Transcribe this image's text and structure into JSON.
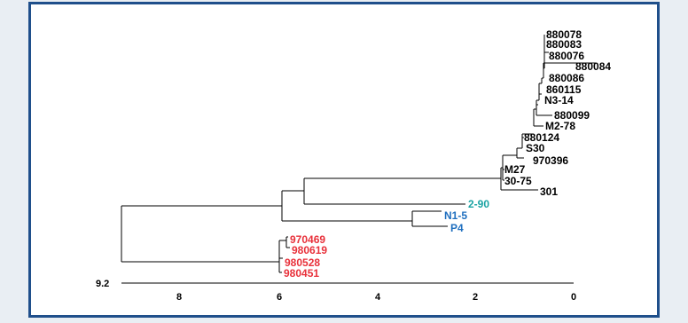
{
  "tree": {
    "scale_label": "9.2",
    "axis_ticks": [
      "8",
      "6",
      "4",
      "2",
      "0"
    ],
    "leaves": [
      {
        "label": "880078",
        "color": "#000000"
      },
      {
        "label": "880083",
        "color": "#000000"
      },
      {
        "label": "880076",
        "color": "#000000"
      },
      {
        "label": "880084",
        "color": "#000000"
      },
      {
        "label": "880086",
        "color": "#000000"
      },
      {
        "label": "860115",
        "color": "#000000"
      },
      {
        "label": "N3-14",
        "color": "#000000"
      },
      {
        "label": "880099",
        "color": "#000000"
      },
      {
        "label": "M2-78",
        "color": "#000000"
      },
      {
        "label": "880124",
        "color": "#000000"
      },
      {
        "label": "S30",
        "color": "#000000"
      },
      {
        "label": "970396",
        "color": "#000000"
      },
      {
        "label": "M27",
        "color": "#000000"
      },
      {
        "label": "30-75",
        "color": "#000000"
      },
      {
        "label": "301",
        "color": "#000000"
      },
      {
        "label": "2-90",
        "color": "#1aa3a3"
      },
      {
        "label": "N1-5",
        "color": "#1f6fbf"
      },
      {
        "label": "P4",
        "color": "#1f6fbf"
      },
      {
        "label": "970469",
        "color": "#e8303a"
      },
      {
        "label": "980619",
        "color": "#e8303a"
      },
      {
        "label": "980528",
        "color": "#e8303a"
      },
      {
        "label": "980451",
        "color": "#e8303a"
      }
    ]
  },
  "colors": {
    "frame_border": "#1f4f8b",
    "background": "#e9eef3"
  }
}
